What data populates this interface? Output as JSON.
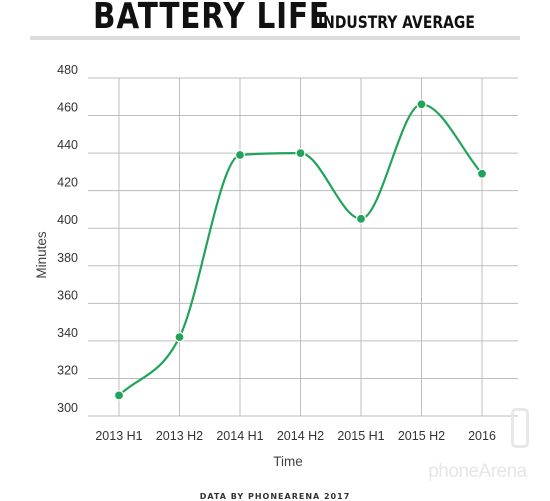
{
  "header": {
    "title": "Battery life",
    "subtitle": "industry average"
  },
  "credit": "Data by PhoneArena 2017",
  "watermark": "phoneArena",
  "colors": {
    "line": "#22a35a",
    "grid": "#bdbdbd",
    "title_rule": "#dcdcdc"
  },
  "chart_data": {
    "type": "line",
    "title": "Battery life industry average",
    "xlabel": "Time",
    "ylabel": "Minutes",
    "categories": [
      "2013 H1",
      "2013 H2",
      "2014 H1",
      "2014 H2",
      "2015 H1",
      "2015 H2",
      "2016"
    ],
    "series": [
      {
        "values": [
          311,
          342,
          439,
          440,
          405,
          466,
          429
        ]
      }
    ],
    "ylim": [
      300,
      480
    ],
    "yticks": [
      300,
      320,
      340,
      360,
      380,
      400,
      420,
      440,
      460,
      480
    ],
    "smooth": true,
    "grid": true
  }
}
